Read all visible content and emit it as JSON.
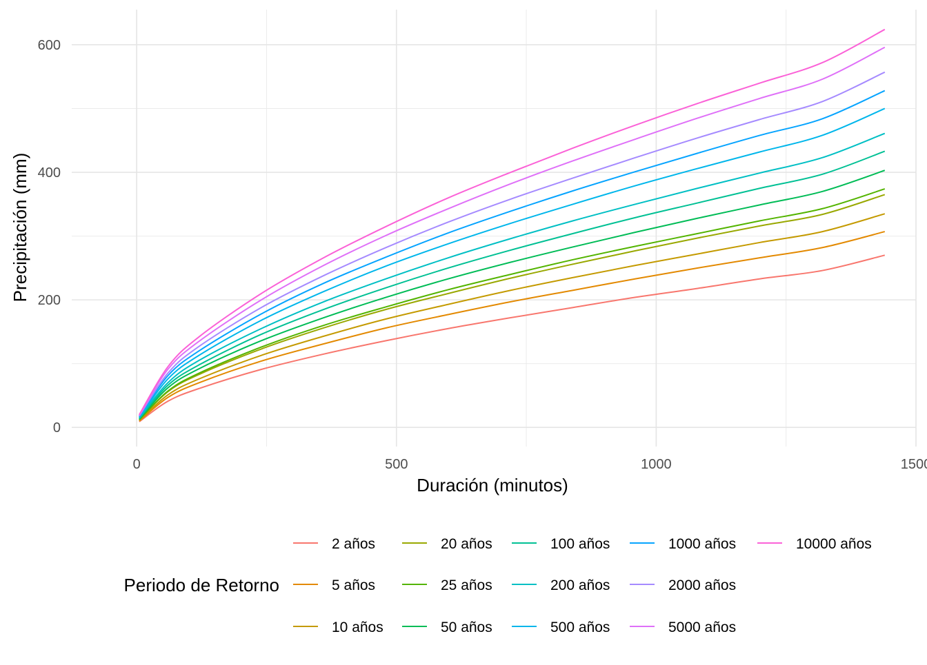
{
  "chart_data": {
    "type": "line",
    "xlabel": "Duración (minutos)",
    "ylabel": "Precipitación (mm)",
    "xlim": [
      -125,
      1500
    ],
    "ylim": [
      -30,
      655
    ],
    "x_ticks": [
      0,
      500,
      1000,
      1500
    ],
    "y_ticks": [
      0,
      200,
      400,
      600
    ],
    "grid": true,
    "legend_title": "Periodo de Retorno",
    "legend_position": "bottom",
    "x": [
      5,
      60,
      120,
      240,
      360,
      480,
      600,
      720,
      840,
      960,
      1080,
      1200,
      1320,
      1440
    ],
    "series": [
      {
        "name": "2 años",
        "color": "#F8766D",
        "values": [
          9,
          41,
          61,
          91,
          115,
          136,
          155,
          172,
          188,
          204,
          218,
          233,
          246,
          270
        ]
      },
      {
        "name": "5 años",
        "color": "#E38900",
        "values": [
          10,
          47,
          70,
          104,
          131,
          156,
          177,
          197,
          215,
          233,
          250,
          266,
          282,
          307
        ]
      },
      {
        "name": "10 años",
        "color": "#C49A00",
        "values": [
          11,
          51,
          76,
          113,
          143,
          170,
          193,
          215,
          235,
          254,
          272,
          290,
          307,
          335
        ]
      },
      {
        "name": "20 años",
        "color": "#99A800",
        "values": [
          12,
          56,
          83,
          123,
          156,
          185,
          210,
          234,
          256,
          277,
          297,
          316,
          334,
          365
        ]
      },
      {
        "name": "25 años",
        "color": "#53B400",
        "values": [
          12,
          57,
          85,
          126,
          160,
          189,
          216,
          240,
          263,
          284,
          304,
          324,
          343,
          374
        ]
      },
      {
        "name": "50 años",
        "color": "#00BC56",
        "values": [
          13,
          62,
          92,
          136,
          172,
          204,
          233,
          259,
          283,
          306,
          328,
          349,
          370,
          403
        ]
      },
      {
        "name": "100 años",
        "color": "#00C094",
        "values": [
          14,
          66,
          98,
          146,
          185,
          219,
          250,
          278,
          304,
          329,
          352,
          375,
          397,
          433
        ]
      },
      {
        "name": "200 años",
        "color": "#00BFC4",
        "values": [
          15,
          70,
          105,
          155,
          197,
          233,
          266,
          296,
          324,
          350,
          375,
          399,
          423,
          461
        ]
      },
      {
        "name": "500 años",
        "color": "#00B6EB",
        "values": [
          16,
          76,
          113,
          168,
          213,
          253,
          288,
          320,
          350,
          379,
          406,
          432,
          458,
          500
        ]
      },
      {
        "name": "1000 años",
        "color": "#06A4FF",
        "values": [
          17,
          81,
          120,
          178,
          226,
          267,
          305,
          339,
          371,
          401,
          430,
          458,
          484,
          528
        ]
      },
      {
        "name": "2000 años",
        "color": "#A58AFF",
        "values": [
          18,
          85,
          127,
          188,
          238,
          282,
          322,
          358,
          391,
          423,
          454,
          483,
          511,
          557
        ]
      },
      {
        "name": "5000 años",
        "color": "#DF70F8",
        "values": [
          19,
          91,
          135,
          200,
          254,
          301,
          343,
          382,
          418,
          452,
          485,
          516,
          546,
          596
        ]
      },
      {
        "name": "10000 años",
        "color": "#FB61D7",
        "values": [
          20,
          95,
          142,
          210,
          266,
          315,
          360,
          400,
          438,
          474,
          508,
          540,
          572,
          624
        ]
      }
    ]
  }
}
